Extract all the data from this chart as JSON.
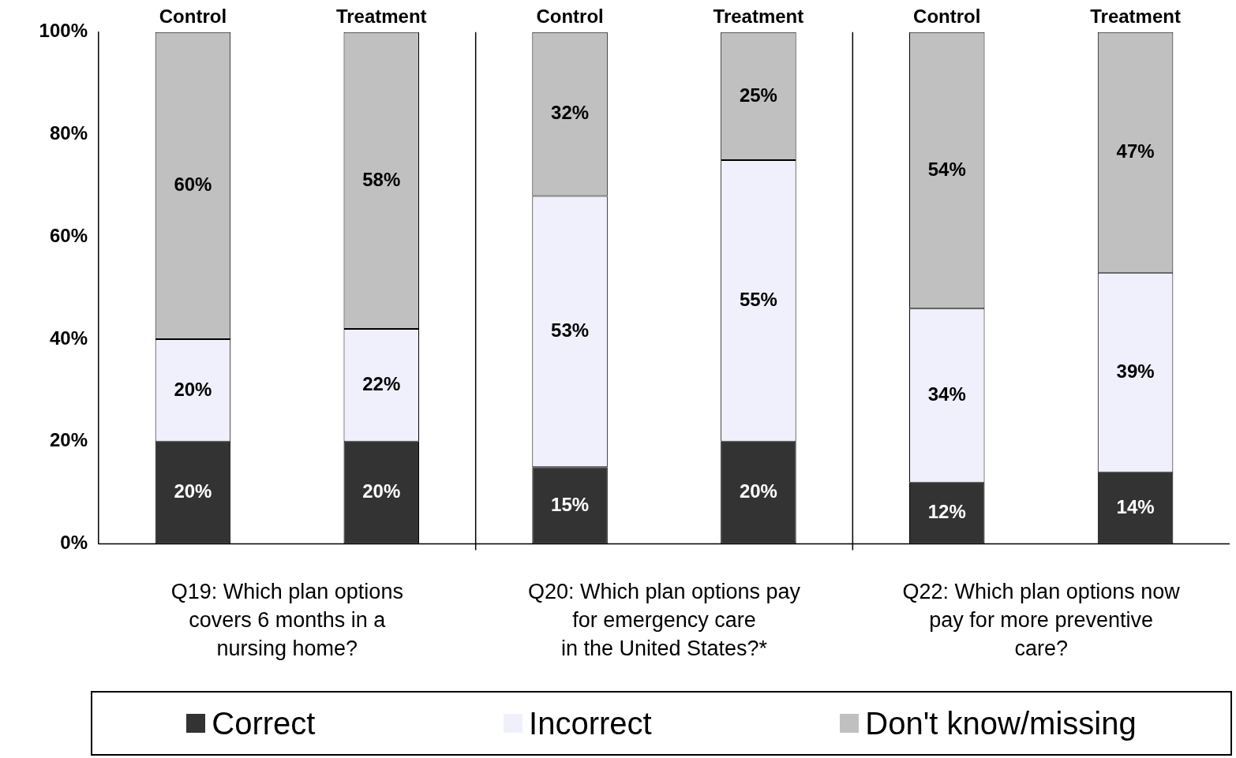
{
  "chart_data": {
    "type": "bar",
    "stacked": true,
    "categories": [
      "Control",
      "Treatment",
      "Control",
      "Treatment",
      "Control",
      "Treatment"
    ],
    "series": [
      {
        "name": "Correct",
        "color": "#333333",
        "values": [
          20,
          20,
          15,
          20,
          12,
          14
        ],
        "value_labels": [
          "20%",
          "20%",
          "15%",
          "20%",
          "12%",
          "14%"
        ]
      },
      {
        "name": "Incorrect",
        "color": "#f0f0fc",
        "values": [
          20,
          22,
          53,
          55,
          34,
          39
        ],
        "value_labels": [
          "20%",
          "22%",
          "53%",
          "55%",
          "34%",
          "39%"
        ]
      },
      {
        "name": "Don't know/missing",
        "color": "#c0c0c0",
        "values": [
          60,
          58,
          32,
          25,
          54,
          47
        ],
        "value_labels": [
          "60%",
          "58%",
          "32%",
          "25%",
          "54%",
          "47%"
        ]
      }
    ],
    "ylim": [
      0,
      100
    ],
    "yticks": [
      {
        "value": 0,
        "label": "0%"
      },
      {
        "value": 20,
        "label": "20%"
      },
      {
        "value": 40,
        "label": "40%"
      },
      {
        "value": 60,
        "label": "60%"
      },
      {
        "value": 80,
        "label": "80%"
      },
      {
        "value": 100,
        "label": "100%"
      }
    ],
    "grid": false,
    "legend": "bottom",
    "annotations": [
      "Q19: Which plan options\ncovers 6 months in a\nnursing home?",
      "Q20: Which plan options pay\nfor emergency care\nin the United States?*",
      "Q22: Which plan options now\npay for more preventive\ncare?"
    ]
  }
}
